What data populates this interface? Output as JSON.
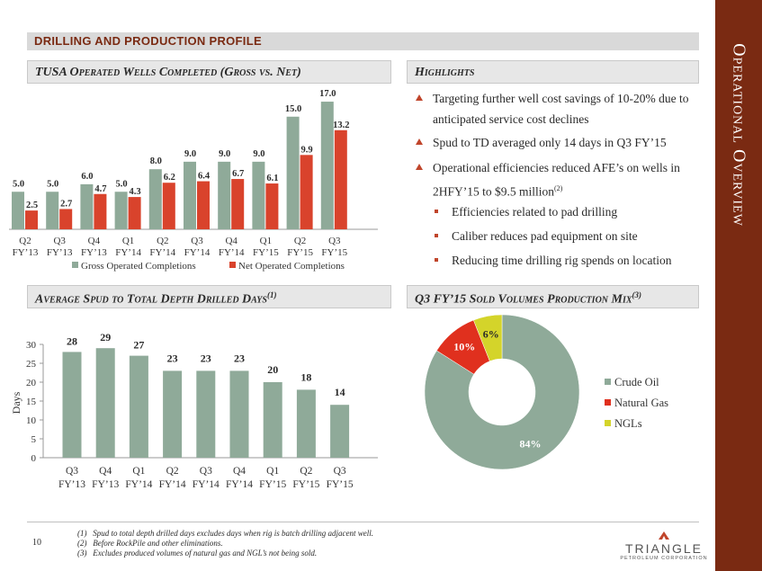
{
  "sidebar": {
    "title": "Operational Overview"
  },
  "header": {
    "title": "DRILLING AND PRODUCTION PROFILE"
  },
  "wells": {
    "title": "TUSA Operated Wells Completed (Gross vs. Net)",
    "colors": {
      "gross": "#8faa99",
      "net": "#d9432c"
    }
  },
  "highlights": {
    "title": "Highlights",
    "items": [
      {
        "line1": "Targeting further well cost savings of 10-20% due to",
        "line2": "anticipated service cost declines"
      },
      {
        "line1": "Spud to TD averaged only 14 days in Q3 FY’15",
        "line2": ""
      },
      {
        "line1": "Operational efficiencies reduced AFE’s on wells in",
        "line2": "2HFY’15 to $9.5 million",
        "sup": "(2)"
      }
    ],
    "subitems": [
      "Efficiencies related to pad drilling",
      "Caliber reduces pad equipment on site",
      "Reducing time drilling rig spends on location"
    ]
  },
  "spud": {
    "title": "Average Spud to Total Depth Drilled Days",
    "sup": "(1)",
    "color": "#8faa99"
  },
  "mix": {
    "title": "Q3 FY’15 Sold Volumes Production Mix",
    "sup": "(3)"
  },
  "chart_data": [
    {
      "type": "bar",
      "categories": [
        [
          "Q2",
          "FY’13"
        ],
        [
          "Q3",
          "FY’13"
        ],
        [
          "Q4",
          "FY’13"
        ],
        [
          "Q1",
          "FY’14"
        ],
        [
          "Q2",
          "FY’14"
        ],
        [
          "Q3",
          "FY’14"
        ],
        [
          "Q4",
          "FY’14"
        ],
        [
          "Q1",
          "FY’15"
        ],
        [
          "Q2",
          "FY’15"
        ],
        [
          "Q3",
          "FY’15"
        ]
      ],
      "series": [
        {
          "name": "Gross Operated Completions",
          "values": [
            5.0,
            5.0,
            6.0,
            5.0,
            8.0,
            9.0,
            9.0,
            9.0,
            15.0,
            17.0
          ],
          "labels": [
            "5.0",
            "5.0",
            "6.0",
            "5.0",
            "8.0",
            "9.0",
            "9.0",
            "9.0",
            "15.0",
            "17.0"
          ]
        },
        {
          "name": "Net Operated Completions",
          "values": [
            2.5,
            2.7,
            4.7,
            4.3,
            6.2,
            6.4,
            6.7,
            6.1,
            9.9,
            13.2
          ],
          "labels": [
            "2.5",
            "2.7",
            "4.7",
            "4.3",
            "6.2",
            "6.4",
            "6.7",
            "6.1",
            "9.9",
            "13.2"
          ]
        }
      ],
      "legend": "bottom"
    },
    {
      "type": "bar",
      "categories": [
        [
          "Q3",
          "FY’13"
        ],
        [
          "Q4",
          "FY’13"
        ],
        [
          "Q1",
          "FY’14"
        ],
        [
          "Q2",
          "FY’14"
        ],
        [
          "Q3",
          "FY’14"
        ],
        [
          "Q4",
          "FY’14"
        ],
        [
          "Q1",
          "FY’15"
        ],
        [
          "Q2",
          "FY’15"
        ],
        [
          "Q3",
          "FY’15"
        ]
      ],
      "values": [
        28,
        29,
        27,
        23,
        23,
        23,
        20,
        18,
        14
      ],
      "labels": [
        "28",
        "29",
        "27",
        "23",
        "23",
        "23",
        "20",
        "18",
        "14"
      ],
      "ylabel": "Days",
      "ylim": [
        0,
        30
      ],
      "yticks": [
        "0",
        "5",
        "10",
        "15",
        "20",
        "25",
        "30"
      ]
    },
    {
      "type": "pie",
      "donut": true,
      "slices": [
        {
          "name": "Crude Oil",
          "value": 84,
          "label": "84%",
          "color": "#8faa99"
        },
        {
          "name": "Natural Gas",
          "value": 10,
          "label": "10%",
          "color": "#e0301e"
        },
        {
          "name": "NGLs",
          "value": 6,
          "label": "6%",
          "color": "#d4d42a"
        }
      ],
      "legend": "right"
    }
  ],
  "footnotes": [
    {
      "num": "(1)",
      "text": "Spud to total depth drilled days excludes days when rig is batch drilling adjacent well."
    },
    {
      "num": "(2)",
      "text": "Before RockPile and other eliminations."
    },
    {
      "num": "(3)",
      "text": "Excludes produced volumes of natural gas and NGL’s not being sold."
    }
  ],
  "page_number": "10",
  "logo": {
    "name": "TRIANGLE",
    "sub": "PETROLEUM CORPORATION"
  }
}
